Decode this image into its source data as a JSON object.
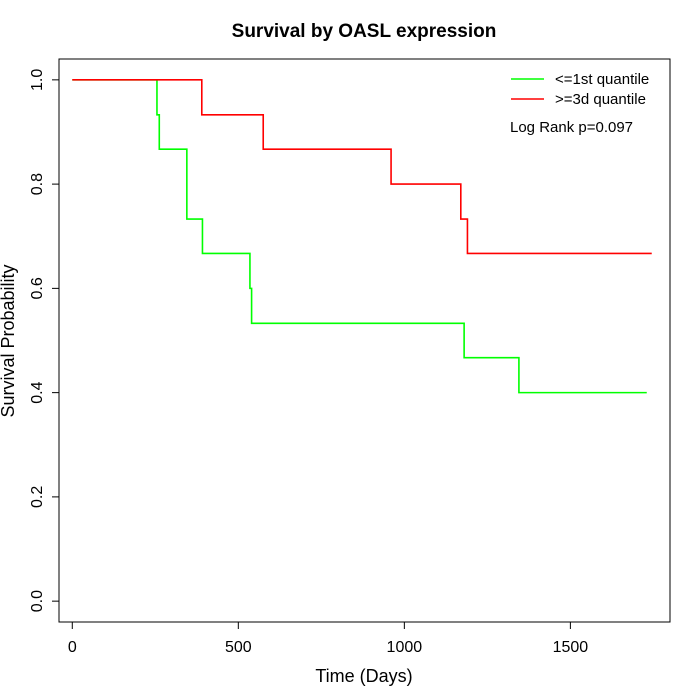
{
  "chart_data": {
    "type": "line",
    "title": "Survival by OASL expression",
    "xlabel": "Time (Days)",
    "ylabel": "Survival Probability",
    "xlim": [
      -40,
      1800
    ],
    "ylim": [
      -0.04,
      1.04
    ],
    "x_ticks": [
      0,
      500,
      1000,
      1500
    ],
    "y_ticks": [
      0.0,
      0.2,
      0.4,
      0.6,
      0.8,
      1.0
    ],
    "x_tick_labels": [
      "0",
      "500",
      "1000",
      "1500"
    ],
    "y_tick_labels": [
      "0.0",
      "0.2",
      "0.4",
      "0.6",
      "0.8",
      "1.0"
    ],
    "legend_position": "top-right",
    "annotation": "Log Rank p=0.097",
    "series": [
      {
        "name": "<=1st quantile",
        "color": "#00ff00",
        "x": [
          0,
          255,
          262,
          345,
          392,
          535,
          540,
          1180,
          1345,
          1730
        ],
        "y": [
          1.0,
          0.933,
          0.867,
          0.733,
          0.667,
          0.6,
          0.533,
          0.467,
          0.4,
          0.4
        ]
      },
      {
        "name": ">=3d quantile",
        "color": "#ff0000",
        "x": [
          0,
          390,
          575,
          960,
          1170,
          1190,
          1745
        ],
        "y": [
          1.0,
          0.933,
          0.867,
          0.8,
          0.733,
          0.667,
          0.667
        ]
      }
    ]
  }
}
